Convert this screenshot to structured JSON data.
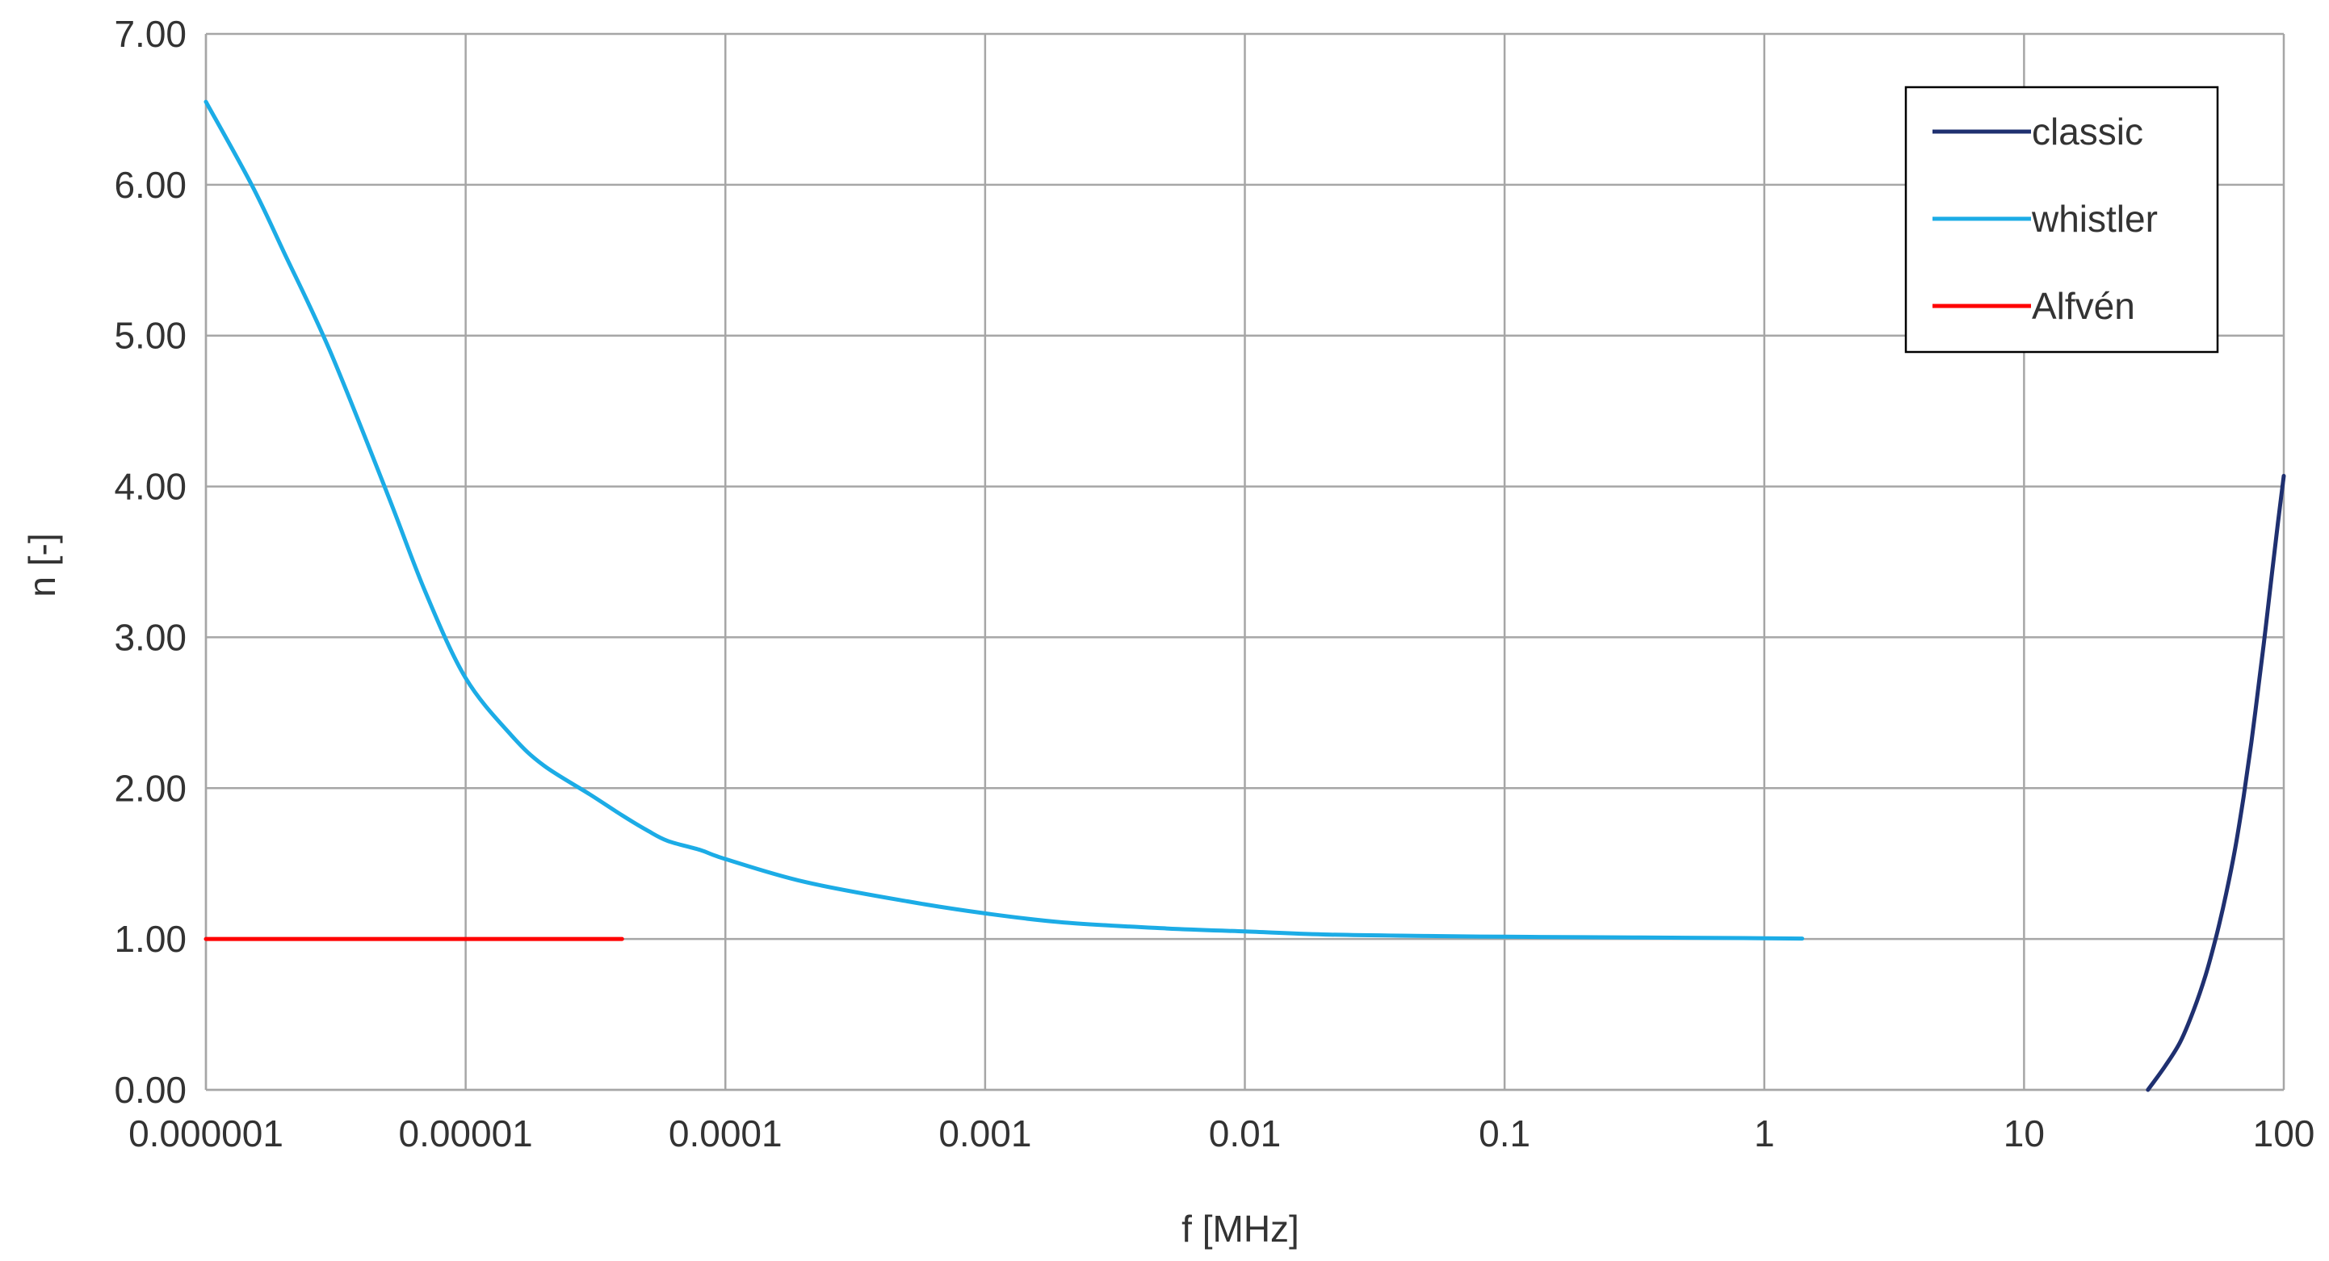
{
  "chart_data": {
    "type": "line",
    "title": "",
    "xlabel": "f [MHz]",
    "ylabel": "n [-]",
    "x_scale": "log",
    "xlim": [
      1e-06,
      100
    ],
    "ylim": [
      0,
      7
    ],
    "x_ticks": [
      "0.000001",
      "0.00001",
      "0.0001",
      "0.001",
      "0.01",
      "0.1",
      "1",
      "10",
      "100"
    ],
    "y_ticks": [
      "0.00",
      "1.00",
      "2.00",
      "3.00",
      "4.00",
      "5.00",
      "6.00",
      "7.00"
    ],
    "grid": true,
    "legend_position": "top-right",
    "series": [
      {
        "name": "classic",
        "color": "#1f3070",
        "x": [
          30,
          35,
          40,
          45,
          50,
          55,
          60,
          65,
          70,
          75,
          80,
          85,
          90,
          95,
          100
        ],
        "y": [
          0.0,
          0.16,
          0.32,
          0.53,
          0.76,
          1.02,
          1.3,
          1.6,
          1.94,
          2.3,
          2.68,
          3.05,
          3.42,
          3.76,
          4.07
        ]
      },
      {
        "name": "whistler",
        "color": "#1cace6",
        "x": [
          1e-06,
          1.5e-06,
          2e-06,
          3e-06,
          5e-06,
          7e-06,
          1e-05,
          1.5e-05,
          2e-05,
          3e-05,
          4e-05,
          5e-05,
          6e-05,
          8e-05,
          0.0001,
          0.0002,
          0.0005,
          0.001,
          0.002,
          0.005,
          0.01,
          0.02,
          0.05,
          0.1,
          0.2,
          0.5,
          1,
          1.4
        ],
        "y": [
          6.55,
          6.0,
          5.55,
          4.9,
          3.95,
          3.3,
          2.73,
          2.35,
          2.15,
          1.96,
          1.82,
          1.72,
          1.65,
          1.59,
          1.53,
          1.38,
          1.25,
          1.17,
          1.11,
          1.07,
          1.05,
          1.03,
          1.02,
          1.015,
          1.012,
          1.008,
          1.005,
          1.003
        ]
      },
      {
        "name": "Alfvén",
        "color": "#ff0000",
        "x": [
          1e-06,
          4e-05
        ],
        "y": [
          1.0,
          1.0
        ]
      }
    ]
  }
}
